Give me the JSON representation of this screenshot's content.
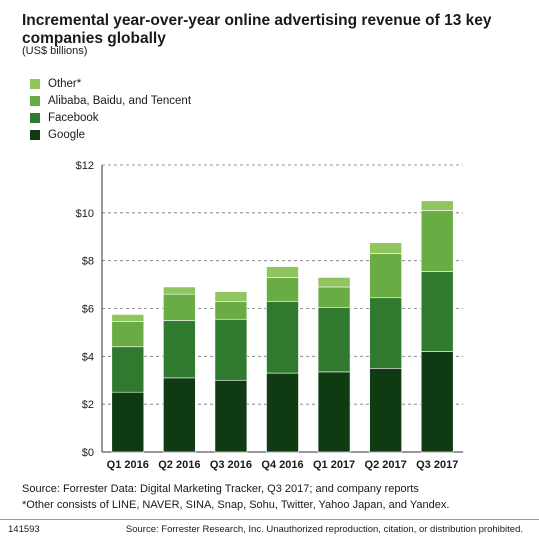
{
  "header": {
    "title": "Incremental year-over-year online advertising revenue of 13 key companies globally",
    "subtitle": "(US$ billions)"
  },
  "footer": {
    "source": "Source: Forrester Data: Digital Marketing Tracker, Q3 2017; and company reports",
    "footnote": "*Other consists of LINE, NAVER, SINA, Snap, Sohu, Twitter, Yahoo Japan, and Yandex.",
    "code": "141593",
    "copyright": "Source: Forrester Research, Inc. Unauthorized reproduction, citation, or distribution prohibited."
  },
  "chart_data": {
    "type": "bar",
    "stacked": true,
    "categories": [
      "Q1 2016",
      "Q2 2016",
      "Q3 2016",
      "Q4 2016",
      "Q1 2017",
      "Q2 2017",
      "Q3 2017"
    ],
    "series": [
      {
        "name": "Google",
        "color": "#0f3a12",
        "values": [
          2.5,
          3.1,
          3.0,
          3.3,
          3.35,
          3.5,
          4.2
        ]
      },
      {
        "name": "Facebook",
        "color": "#2f7a2f",
        "values": [
          1.9,
          2.4,
          2.55,
          3.0,
          2.7,
          2.95,
          3.35
        ]
      },
      {
        "name": "Alibaba, Baidu, and Tencent",
        "color": "#6aac44",
        "values": [
          1.05,
          1.1,
          0.75,
          1.0,
          0.85,
          1.85,
          2.55
        ]
      },
      {
        "name": "Other*",
        "color": "#8fc45e",
        "values": [
          0.3,
          0.3,
          0.4,
          0.45,
          0.4,
          0.45,
          0.4
        ]
      }
    ],
    "legend_order": [
      "Other*",
      "Alibaba, Baidu, and Tencent",
      "Facebook",
      "Google"
    ],
    "ylim": [
      0,
      12
    ],
    "yticks": [
      0,
      2,
      4,
      6,
      8,
      10,
      12
    ],
    "ytick_labels": [
      "$0",
      "$2",
      "$4",
      "$6",
      "$8",
      "$10",
      "$12"
    ],
    "grid": true,
    "legend_position": "top-left"
  }
}
